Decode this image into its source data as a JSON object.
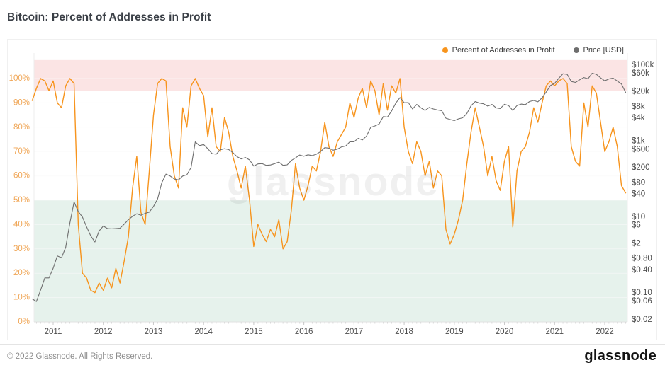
{
  "header": {
    "title": "Bitcoin: Percent of Addresses in Profit"
  },
  "legend": {
    "items": [
      {
        "label": "Percent of Addresses in Profit",
        "color": "#f7941d"
      },
      {
        "label": "Price [USD]",
        "color": "#6e6e6e"
      }
    ]
  },
  "watermark": "glassnode",
  "footer": {
    "copyright": "© 2022 Glassnode. All Rights Reserved.",
    "logo": "glassnode"
  },
  "chart_data": {
    "type": "line",
    "title": "Bitcoin: Percent of Addresses in Profit",
    "x_axis": {
      "year_ticks": [
        2011,
        2012,
        2013,
        2014,
        2015,
        2016,
        2017,
        2018,
        2019,
        2020,
        2021,
        2022
      ]
    },
    "left_axis": {
      "label_color": "#f0a656",
      "unit": "%",
      "ymin": 0,
      "ymax": 107.6,
      "ticks": [
        {
          "v": 0,
          "label": "0%"
        },
        {
          "v": 10,
          "label": "10%"
        },
        {
          "v": 20,
          "label": "20%"
        },
        {
          "v": 30,
          "label": "30%"
        },
        {
          "v": 40,
          "label": "40%"
        },
        {
          "v": 50,
          "label": "50%"
        },
        {
          "v": 60,
          "label": "60%"
        },
        {
          "v": 70,
          "label": "70%"
        },
        {
          "v": 80,
          "label": "80%"
        },
        {
          "v": 90,
          "label": "90%"
        },
        {
          "v": 100,
          "label": "100%"
        }
      ]
    },
    "right_axis": {
      "scale": "log",
      "label_color": "#4d4d4d",
      "unit": "USD",
      "ticks": [
        {
          "v": 100000,
          "label": "$100k"
        },
        {
          "v": 60000,
          "label": "$60k"
        },
        {
          "v": 20000,
          "label": "$20k"
        },
        {
          "v": 8000,
          "label": "$8k"
        },
        {
          "v": 4000,
          "label": "$4k"
        },
        {
          "v": 1000,
          "label": "$1k"
        },
        {
          "v": 600,
          "label": "$600"
        },
        {
          "v": 200,
          "label": "$200"
        },
        {
          "v": 80,
          "label": "$80"
        },
        {
          "v": 40,
          "label": "$40"
        },
        {
          "v": 10,
          "label": "$10"
        },
        {
          "v": 6,
          "label": "$6"
        },
        {
          "v": 2,
          "label": "$2"
        },
        {
          "v": 0.8,
          "label": "$0.80"
        },
        {
          "v": 0.4,
          "label": "$0.40"
        },
        {
          "v": 0.1,
          "label": "$0.10"
        },
        {
          "v": 0.06,
          "label": "$0.06"
        },
        {
          "v": 0.02,
          "label": "$0.02"
        }
      ]
    },
    "bands": [
      {
        "name": "overbought",
        "axis": "left",
        "from": 95,
        "to": 107.6,
        "color": "#fbe4e4"
      },
      {
        "name": "oversold",
        "axis": "left",
        "from": 0,
        "to": 50,
        "color": "#e6f2ec"
      }
    ],
    "series": [
      {
        "name": "Percent of Addresses in Profit",
        "axis": "left",
        "color": "#f7941d",
        "start": "2010-08",
        "interval": "monthly",
        "values": [
          91,
          96,
          100,
          99,
          95,
          99,
          90,
          88,
          97,
          100,
          98,
          40,
          20,
          18,
          13,
          12,
          16,
          13,
          18,
          14,
          22,
          16,
          25,
          35,
          55,
          68,
          45,
          40,
          62,
          85,
          98,
          100,
          99,
          72,
          60,
          55,
          88,
          80,
          97,
          100,
          96,
          93,
          76,
          88,
          72,
          70,
          84,
          78,
          68,
          62,
          55,
          64,
          50,
          31,
          40,
          36,
          33,
          38,
          35,
          42,
          30,
          33,
          46,
          65,
          55,
          50,
          56,
          64,
          62,
          70,
          82,
          72,
          68,
          74,
          77,
          80,
          90,
          84,
          92,
          96,
          88,
          99,
          95,
          85,
          98,
          87,
          97,
          94,
          100,
          80,
          70,
          65,
          74,
          70,
          60,
          66,
          55,
          62,
          60,
          38,
          32,
          36,
          42,
          50,
          65,
          78,
          88,
          80,
          72,
          60,
          68,
          58,
          54,
          66,
          72,
          39,
          62,
          70,
          72,
          78,
          88,
          82,
          90,
          97,
          99,
          97,
          99,
          100,
          98,
          72,
          66,
          64,
          90,
          80,
          97,
          94,
          82,
          70,
          74,
          80,
          72,
          56,
          53
        ]
      },
      {
        "name": "Price [USD]",
        "axis": "right",
        "color": "#6e6e6e",
        "start": "2010-08",
        "interval": "monthly",
        "values": [
          0.07,
          0.06,
          0.12,
          0.25,
          0.25,
          0.45,
          0.95,
          0.85,
          1.6,
          7,
          25,
          14,
          10,
          5.5,
          3.2,
          2.2,
          4.3,
          5.8,
          5.0,
          4.9,
          5.0,
          5.1,
          6.5,
          8.5,
          10.5,
          12.2,
          11.2,
          12.5,
          13.5,
          19,
          30,
          80,
          135,
          120,
          100,
          95,
          120,
          130,
          200,
          950,
          760,
          810,
          630,
          470,
          450,
          590,
          630,
          600,
          500,
          390,
          340,
          370,
          320,
          220,
          250,
          255,
          230,
          235,
          255,
          280,
          230,
          237,
          310,
          360,
          430,
          400,
          435,
          415,
          450,
          530,
          670,
          650,
          575,
          610,
          700,
          740,
          960,
          960,
          1180,
          1070,
          1350,
          2300,
          2500,
          2800,
          4400,
          4300,
          6200,
          10000,
          14000,
          10200,
          10300,
          7000,
          9200,
          7500,
          6400,
          7700,
          7000,
          6600,
          6300,
          4000,
          3700,
          3450,
          3850,
          4100,
          5300,
          8500,
          11000,
          10000,
          9600,
          8300,
          9200,
          7500,
          7200,
          9300,
          8600,
          6400,
          8600,
          9400,
          9100,
          11000,
          11700,
          10800,
          13800,
          19700,
          29000,
          33000,
          45000,
          59000,
          57000,
          37000,
          35000,
          41000,
          47000,
          43800,
          61000,
          57000,
          46200,
          38500,
          43200,
          45500,
          38000,
          31800,
          19000
        ]
      }
    ]
  }
}
